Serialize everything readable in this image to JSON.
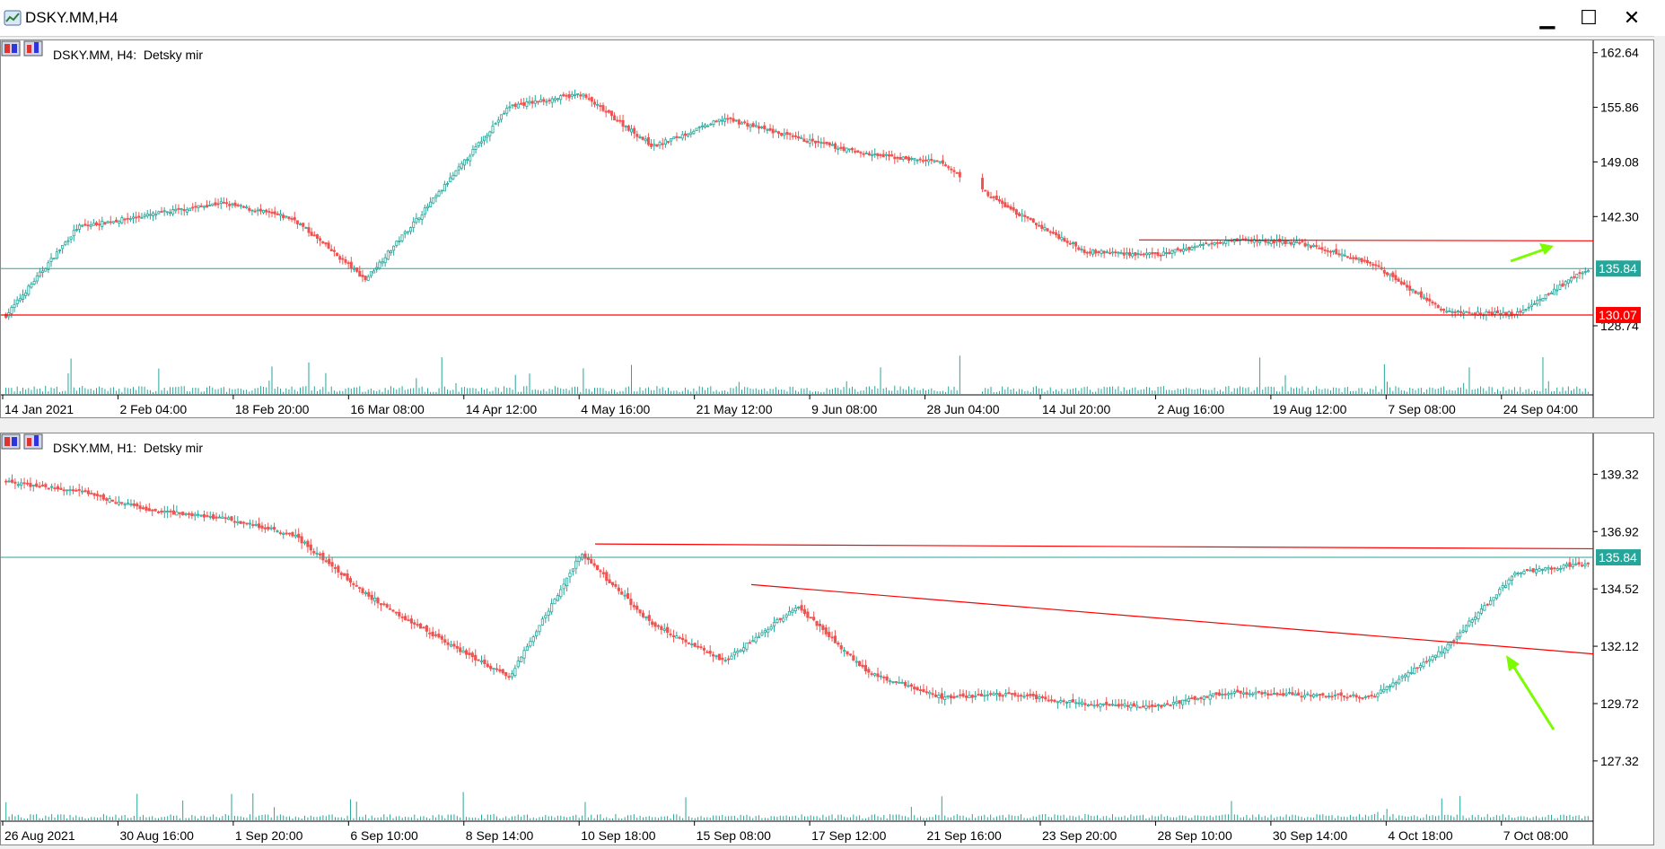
{
  "window": {
    "title": "DSKY.MM,H4",
    "minimize_glyph": "▁",
    "maximize_glyph": "☐",
    "close_glyph": "✕"
  },
  "panes": [
    {
      "label": "DSKY.MM, H4:  Detsky mir",
      "y_ticks": [
        "162.64",
        "155.86",
        "149.08",
        "142.30",
        "128.74"
      ],
      "y_tick_values": [
        162.64,
        155.86,
        149.08,
        142.3,
        128.74
      ],
      "x_ticks": [
        "14 Jan 2021",
        "2 Feb 04:00",
        "18 Feb 20:00",
        "16 Mar 08:00",
        "14 Apr 12:00",
        "4 May 16:00",
        "21 May 12:00",
        "9 Jun 08:00",
        "28 Jun 04:00",
        "14 Jul 20:00",
        "2 Aug 16:00",
        "19 Aug 12:00",
        "7 Sep 08:00",
        "24 Sep 04:00"
      ],
      "price_label": "135.84",
      "line_label": "130.07",
      "ylim": [
        123.5,
        163.5
      ]
    },
    {
      "label": "DSKY.MM, H1:  Detsky mir",
      "y_ticks": [
        "139.32",
        "136.92",
        "134.52",
        "132.12",
        "129.72",
        "127.32"
      ],
      "y_tick_values": [
        139.32,
        136.92,
        134.52,
        132.12,
        129.72,
        127.32
      ],
      "x_ticks": [
        "26 Aug 2021",
        "30 Aug 16:00",
        "1 Sep 20:00",
        "6 Sep 10:00",
        "8 Sep 14:00",
        "10 Sep 18:00",
        "15 Sep 08:00",
        "17 Sep 12:00",
        "21 Sep 16:00",
        "23 Sep 20:00",
        "28 Sep 10:00",
        "30 Sep 14:00",
        "4 Oct 18:00",
        "7 Oct 08:00"
      ],
      "price_label": "135.84",
      "ylim": [
        126.0,
        140.8
      ]
    }
  ],
  "colors": {
    "bull": "#26a69a",
    "bear": "#ef5350",
    "line_red": "#ff0000",
    "line_teal": "#26a69a",
    "arrow": "#7cfc00",
    "volume": "#26a69a"
  },
  "chart_data": [
    {
      "type": "candlestick",
      "title": "DSKY.MM, H4:  Detsky mir",
      "x": [
        "14 Jan 2021",
        "2 Feb 04:00",
        "18 Feb 20:00",
        "16 Mar 08:00",
        "14 Apr 12:00",
        "4 May 16:00",
        "21 May 12:00",
        "9 Jun 08:00",
        "28 Jun 04:00",
        "14 Jul 20:00",
        "2 Aug 16:00",
        "19 Aug 12:00",
        "7 Sep 08:00",
        "24 Sep 04:00"
      ],
      "close_path": [
        130.0,
        141.0,
        142.5,
        144.0,
        142.0,
        134.5,
        145.0,
        156.0,
        157.5,
        151.0,
        154.5,
        152.0,
        150.0,
        149.0,
        143.0,
        138.0,
        137.5,
        139.5,
        139.0,
        136.5,
        130.5,
        130.2,
        135.8
      ],
      "ylim": [
        123.5,
        163.5
      ],
      "horizontal_lines": [
        135.84,
        130.07,
        139.4
      ],
      "last_price": 135.84,
      "grid": false
    },
    {
      "type": "candlestick",
      "title": "DSKY.MM, H1:  Detsky mir",
      "x": [
        "26 Aug 2021",
        "30 Aug 16:00",
        "1 Sep 20:00",
        "6 Sep 10:00",
        "8 Sep 14:00",
        "10 Sep 18:00",
        "15 Sep 08:00",
        "17 Sep 12:00",
        "21 Sep 16:00",
        "23 Sep 20:00",
        "28 Sep 10:00",
        "30 Sep 14:00",
        "4 Oct 18:00",
        "7 Oct 08:00"
      ],
      "close_path": [
        139.0,
        138.6,
        137.8,
        137.5,
        136.8,
        134.3,
        132.5,
        130.8,
        136.0,
        133.0,
        131.5,
        133.8,
        131.0,
        130.0,
        130.1,
        129.7,
        129.6,
        130.2,
        130.1,
        130.0,
        132.0,
        135.2,
        135.6
      ],
      "ylim": [
        126.0,
        140.8
      ],
      "horizontal_lines": [
        135.84
      ],
      "trend_lines": [
        [
          136.4,
          136.2
        ],
        [
          134.7,
          131.8
        ]
      ],
      "last_price": 135.84,
      "grid": false
    }
  ]
}
